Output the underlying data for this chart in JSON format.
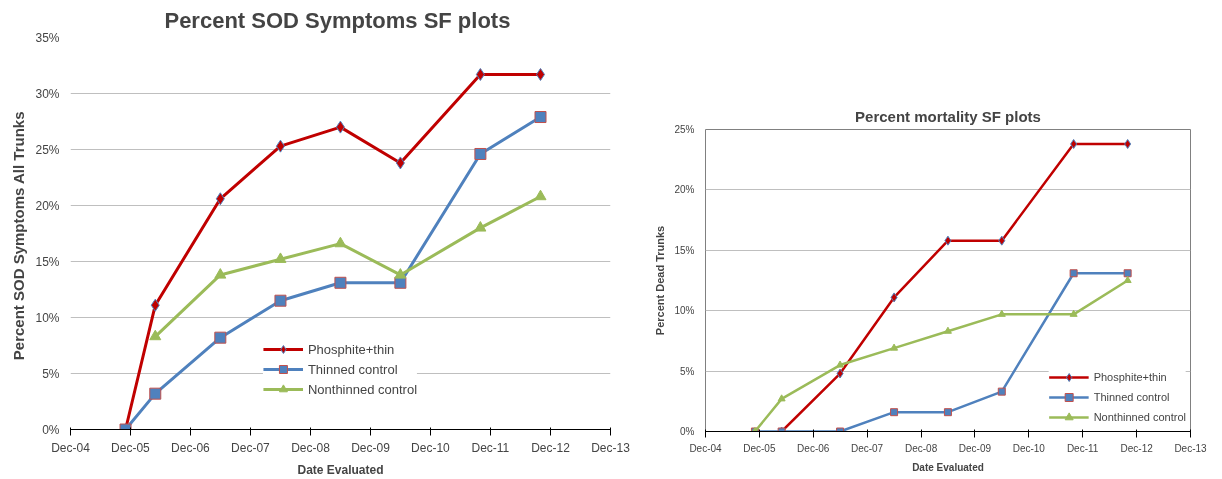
{
  "chart_data": [
    {
      "type": "line",
      "title": "Percent  SOD Symptoms SF plots",
      "xlabel": "Date Evaluated",
      "ylabel": "Percent SOD Symptoms  All Trunks",
      "x": [
        "2005-11",
        "2006-05",
        "2007-06",
        "2008-06",
        "2009-06",
        "2010-06",
        "2011-10",
        "2012-10"
      ],
      "series": [
        {
          "name": "Phosphite+thin",
          "color": "#c00000",
          "marker": "diamond",
          "values": [
            0,
            11.1,
            20.6,
            25.3,
            27.0,
            23.8,
            31.7,
            31.7
          ]
        },
        {
          "name": "Thinned control",
          "color": "#4f81bd",
          "marker": "square",
          "values": [
            0,
            3.2,
            8.2,
            11.5,
            13.1,
            13.1,
            24.6,
            27.9
          ]
        },
        {
          "name": "Nonthinned control",
          "color": "#9bbb59",
          "marker": "triangle",
          "values": [
            null,
            8.3,
            13.8,
            15.2,
            16.6,
            13.8,
            18.0,
            20.8
          ]
        }
      ],
      "xlim": [
        "2004-12",
        "2013-12"
      ],
      "xticks": [
        {
          "value": "2004-12",
          "label": "Dec-04"
        },
        {
          "value": "2005-12",
          "label": "Dec-05"
        },
        {
          "value": "2006-12",
          "label": "Dec-06"
        },
        {
          "value": "2007-12",
          "label": "Dec-07"
        },
        {
          "value": "2008-12",
          "label": "Dec-08"
        },
        {
          "value": "2009-12",
          "label": "Dec-09"
        },
        {
          "value": "2010-12",
          "label": "Dec-10"
        },
        {
          "value": "2011-12",
          "label": "Dec-11"
        },
        {
          "value": "2012-12",
          "label": "Dec-12"
        },
        {
          "value": "2013-12",
          "label": "Dec-13"
        }
      ],
      "ylim": [
        0,
        35
      ],
      "yticks": [
        {
          "value": 0,
          "label": "0%"
        },
        {
          "value": 5,
          "label": "5%"
        },
        {
          "value": 10,
          "label": "10%"
        },
        {
          "value": 15,
          "label": "15%"
        },
        {
          "value": 20,
          "label": "20%"
        },
        {
          "value": 25,
          "label": "25%"
        },
        {
          "value": 30,
          "label": "30%"
        },
        {
          "value": 35,
          "label": "35%"
        }
      ],
      "grid": "y",
      "legend": "bottom"
    },
    {
      "type": "line",
      "title": "Percent mortality SF plots",
      "xlabel": "Date Evaluated",
      "ylabel": "Percent Dead Trunks",
      "x": [
        "2005-11",
        "2006-05",
        "2007-06",
        "2008-06",
        "2009-06",
        "2010-06",
        "2011-10",
        "2012-10"
      ],
      "series": [
        {
          "name": "Phosphite+thin",
          "color": "#c00000",
          "marker": "diamond",
          "values": [
            null,
            0,
            4.8,
            11.1,
            15.8,
            15.8,
            23.8,
            23.8
          ]
        },
        {
          "name": "Thinned control",
          "color": "#4f81bd",
          "marker": "square",
          "values": [
            0,
            0,
            0,
            1.6,
            1.6,
            3.3,
            13.1,
            13.1
          ]
        },
        {
          "name": "Nonthinned control",
          "color": "#9bbb59",
          "marker": "triangle",
          "values": [
            0,
            2.7,
            5.5,
            6.9,
            8.3,
            9.7,
            9.7,
            12.5
          ]
        }
      ],
      "xlim": [
        "2004-12",
        "2013-12"
      ],
      "xticks": [
        {
          "value": "2004-12",
          "label": "Dec-04"
        },
        {
          "value": "2005-12",
          "label": "Dec-05"
        },
        {
          "value": "2006-12",
          "label": "Dec-06"
        },
        {
          "value": "2007-12",
          "label": "Dec-07"
        },
        {
          "value": "2008-12",
          "label": "Dec-08"
        },
        {
          "value": "2009-12",
          "label": "Dec-09"
        },
        {
          "value": "2010-12",
          "label": "Dec-10"
        },
        {
          "value": "2011-12",
          "label": "Dec-11"
        },
        {
          "value": "2012-12",
          "label": "Dec-12"
        },
        {
          "value": "2013-12",
          "label": "Dec-13"
        }
      ],
      "ylim": [
        0,
        25
      ],
      "yticks": [
        {
          "value": 0,
          "label": "0%"
        },
        {
          "value": 5,
          "label": "5%"
        },
        {
          "value": 10,
          "label": "10%"
        },
        {
          "value": 15,
          "label": "15%"
        },
        {
          "value": 20,
          "label": "20%"
        },
        {
          "value": 25,
          "label": "25%"
        }
      ],
      "grid": "y",
      "legend": "bottom right"
    }
  ]
}
